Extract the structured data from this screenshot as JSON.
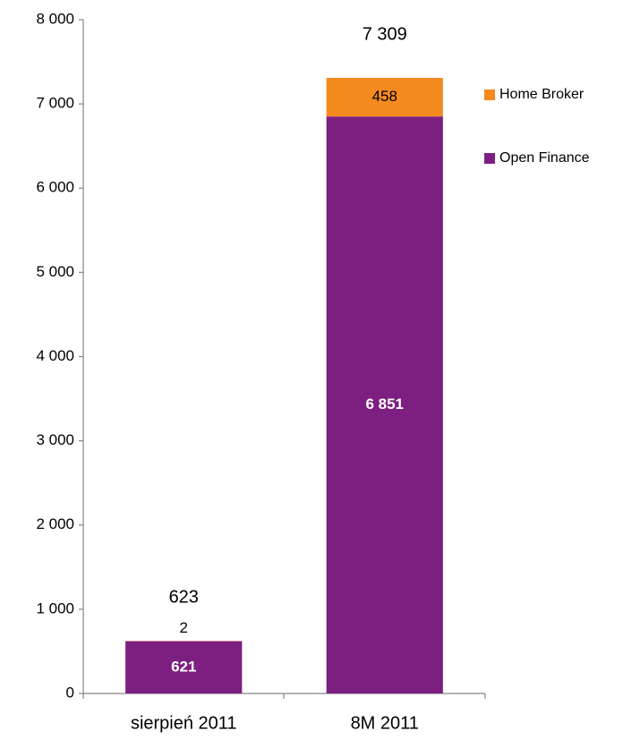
{
  "chart_data": {
    "type": "stacked_bar",
    "categories": [
      "sierpień 2011",
      "8M 2011"
    ],
    "series": [
      {
        "name": "Open Finance",
        "color": "#7d1f80",
        "values": [
          621,
          6851
        ],
        "value_labels": [
          "621",
          "6 851"
        ]
      },
      {
        "name": "Home Broker",
        "color": "#f58a1f",
        "values": [
          2,
          458
        ]
      }
    ],
    "totals": {
      "values": [
        623,
        7309
      ],
      "value_labels": [
        "623",
        "7 309"
      ]
    },
    "ylim": [
      0,
      8000
    ],
    "yticks": [
      0,
      {
        "value": 1000,
        "label": "1 000"
      },
      {
        "value": 2000,
        "label": "2 000"
      },
      {
        "value": 3000,
        "label": "3 000"
      },
      {
        "value": 4000,
        "label": "4 000"
      },
      {
        "value": 5000,
        "label": "5 000"
      },
      {
        "value": 6000,
        "label": "6 000"
      },
      {
        "value": 7000,
        "label": "7 000"
      },
      {
        "value": 8000,
        "label": "8 000"
      }
    ],
    "legend": "right"
  }
}
